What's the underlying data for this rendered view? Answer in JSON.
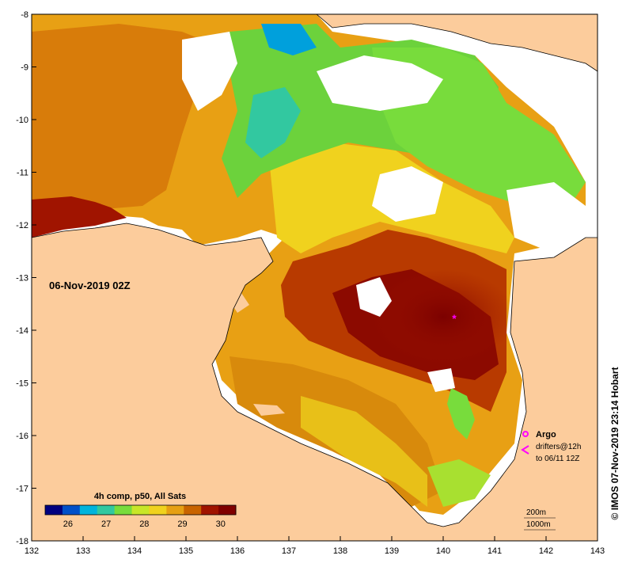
{
  "map": {
    "date_label": "06-Nov-2019 02Z",
    "credit": "© IMOS 07-Nov-2019 23:14 Hobart",
    "x_ticks": [
      "132",
      "133",
      "134",
      "135",
      "136",
      "137",
      "138",
      "139",
      "140",
      "141",
      "142",
      "143"
    ],
    "y_ticks": [
      "-8",
      "-9",
      "-10",
      "-11",
      "-12",
      "-13",
      "-14",
      "-15",
      "-16",
      "-17",
      "-18"
    ],
    "lon_range": [
      132,
      143
    ],
    "lat_range": [
      -18,
      -8
    ],
    "colors": {
      "land": "#fccc9c",
      "no_data": "#ffffff",
      "argo": "#ff00ff"
    }
  },
  "colorbar": {
    "title": "4h comp, p50, All Sats",
    "ticks": [
      "26",
      "27",
      "28",
      "29",
      "30"
    ],
    "tick_values": [
      26,
      27,
      28,
      29,
      30
    ],
    "range": [
      25.4,
      30.4
    ],
    "colors": [
      "#000080",
      "#0050c8",
      "#00b4dc",
      "#32c8a0",
      "#78dc3c",
      "#c8e628",
      "#f0d21e",
      "#e6a014",
      "#c86400",
      "#a01400",
      "#800000"
    ]
  },
  "legend": {
    "argo_label": "Argo",
    "drifters_label": "drifters@12h",
    "drifters_range": "to 06/11 12Z",
    "depth_200": "200m",
    "depth_1000": "1000m"
  }
}
